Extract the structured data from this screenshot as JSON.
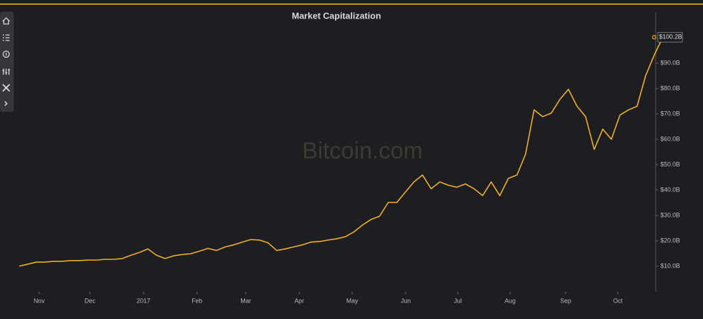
{
  "chart_data": {
    "type": "line",
    "title": "Market Capitalization",
    "watermark": "Bitcoin.com",
    "series": [
      {
        "name": "Market Capitalization",
        "color": "#f7b21a",
        "values": [
          10.0,
          10.8,
          11.6,
          11.6,
          11.9,
          11.9,
          12.2,
          12.2,
          12.4,
          12.4,
          12.7,
          12.7,
          13.0,
          14.3,
          15.4,
          16.8,
          14.3,
          13.0,
          14.1,
          14.6,
          14.9,
          15.9,
          17.0,
          16.2,
          17.6,
          18.4,
          19.5,
          20.5,
          20.3,
          19.2,
          16.2,
          16.8,
          17.6,
          18.4,
          19.5,
          19.7,
          20.3,
          20.8,
          21.6,
          23.5,
          26.2,
          28.4,
          29.7,
          35.1,
          35.1,
          39.2,
          43.2,
          45.9,
          40.5,
          43.2,
          41.9,
          41.1,
          42.4,
          40.5,
          37.8,
          43.2,
          37.8,
          44.6,
          45.9,
          54.1,
          71.6,
          68.9,
          70.3,
          75.7,
          79.7,
          73.0,
          68.9,
          56.0,
          64.0,
          60.0,
          69.5,
          71.6,
          73.0,
          85.1,
          93.2,
          100.2
        ]
      }
    ],
    "annotations": [
      {
        "label": "$100.2B",
        "value": 100.2,
        "x": 74
      }
    ],
    "xlim": [
      0,
      74
    ],
    "xticks": [
      {
        "value": 2.32,
        "label": "Nov"
      },
      {
        "value": 8.24,
        "label": "Dec"
      },
      {
        "value": 14.48,
        "label": "2017"
      },
      {
        "value": 20.72,
        "label": "Feb"
      },
      {
        "value": 26.4,
        "label": "Mar"
      },
      {
        "value": 32.64,
        "label": "Apr"
      },
      {
        "value": 38.8,
        "label": "May"
      },
      {
        "value": 45.04,
        "label": "Jun"
      },
      {
        "value": 51.12,
        "label": "Jul"
      },
      {
        "value": 57.2,
        "label": "Aug"
      },
      {
        "value": 63.68,
        "label": "Sep"
      },
      {
        "value": 69.76,
        "label": "Oct"
      }
    ],
    "ylim": [
      0,
      110
    ],
    "yticks": [
      {
        "value": 10,
        "label": "$10.0B"
      },
      {
        "value": 20,
        "label": "$20.0B"
      },
      {
        "value": 30,
        "label": "$30.0B"
      },
      {
        "value": 40,
        "label": "$40.0B"
      },
      {
        "value": 50,
        "label": "$50.0B"
      },
      {
        "value": 60,
        "label": "$60.0B"
      },
      {
        "value": 70,
        "label": "$70.0B"
      },
      {
        "value": 80,
        "label": "$80.0B"
      },
      {
        "value": 90,
        "label": "$90.0B"
      }
    ],
    "y_axis_side": "right"
  }
}
